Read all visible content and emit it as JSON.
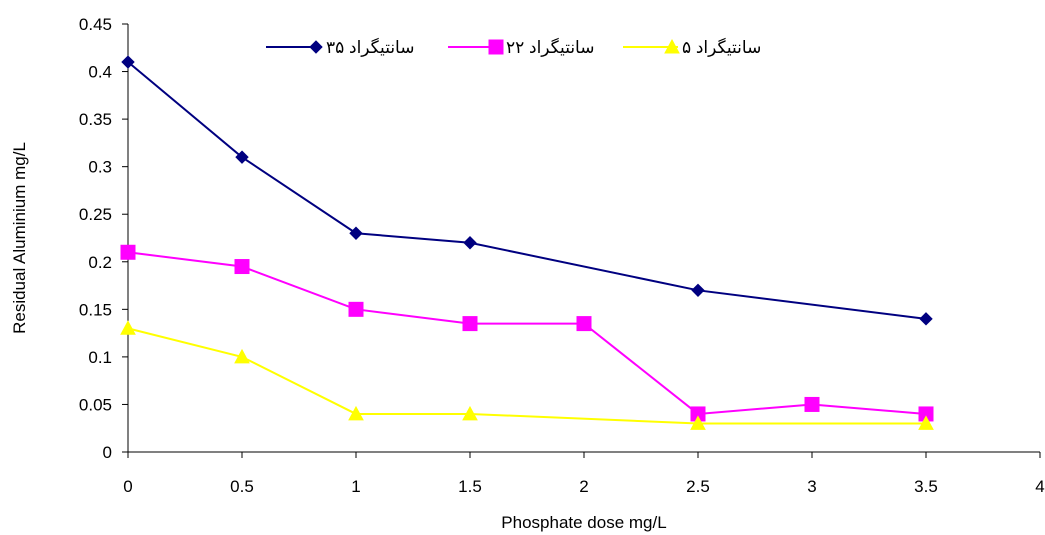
{
  "chart_data": {
    "type": "line",
    "title": "",
    "xlabel": "Phosphate dose mg/L",
    "ylabel": "Residual Aluminium mg/L",
    "xlim": [
      0,
      4
    ],
    "ylim": [
      0,
      0.45
    ],
    "xticks": [
      "0",
      "0.5",
      "1",
      "1.5",
      "2",
      "2.5",
      "3",
      "3.5",
      "4"
    ],
    "yticks": [
      "0",
      "0.05",
      "0.1",
      "0.15",
      "0.2",
      "0.25",
      "0.3",
      "0.35",
      "0.4",
      "0.45"
    ],
    "grid": false,
    "legend_position": "top",
    "series": [
      {
        "name": "۳۵ سانتیگراد",
        "color": "#000080",
        "marker": "diamond",
        "x": [
          0,
          0.5,
          1,
          1.5,
          2.5,
          3.5
        ],
        "y": [
          0.41,
          0.31,
          0.23,
          0.22,
          0.17,
          0.14
        ]
      },
      {
        "name": "۲۲ سانتیگراد",
        "color": "#FF00FF",
        "marker": "square",
        "x": [
          0,
          0.5,
          1,
          1.5,
          2,
          2.5,
          3,
          3.5
        ],
        "y": [
          0.21,
          0.195,
          0.15,
          0.135,
          0.135,
          0.04,
          0.05,
          0.04
        ]
      },
      {
        "name": "۵ سانتیگراد",
        "color": "#FFFF00",
        "marker": "triangle",
        "x": [
          0,
          0.5,
          1,
          1.5,
          2.5,
          3.5
        ],
        "y": [
          0.13,
          0.1,
          0.04,
          0.04,
          0.03,
          0.03
        ]
      }
    ]
  }
}
